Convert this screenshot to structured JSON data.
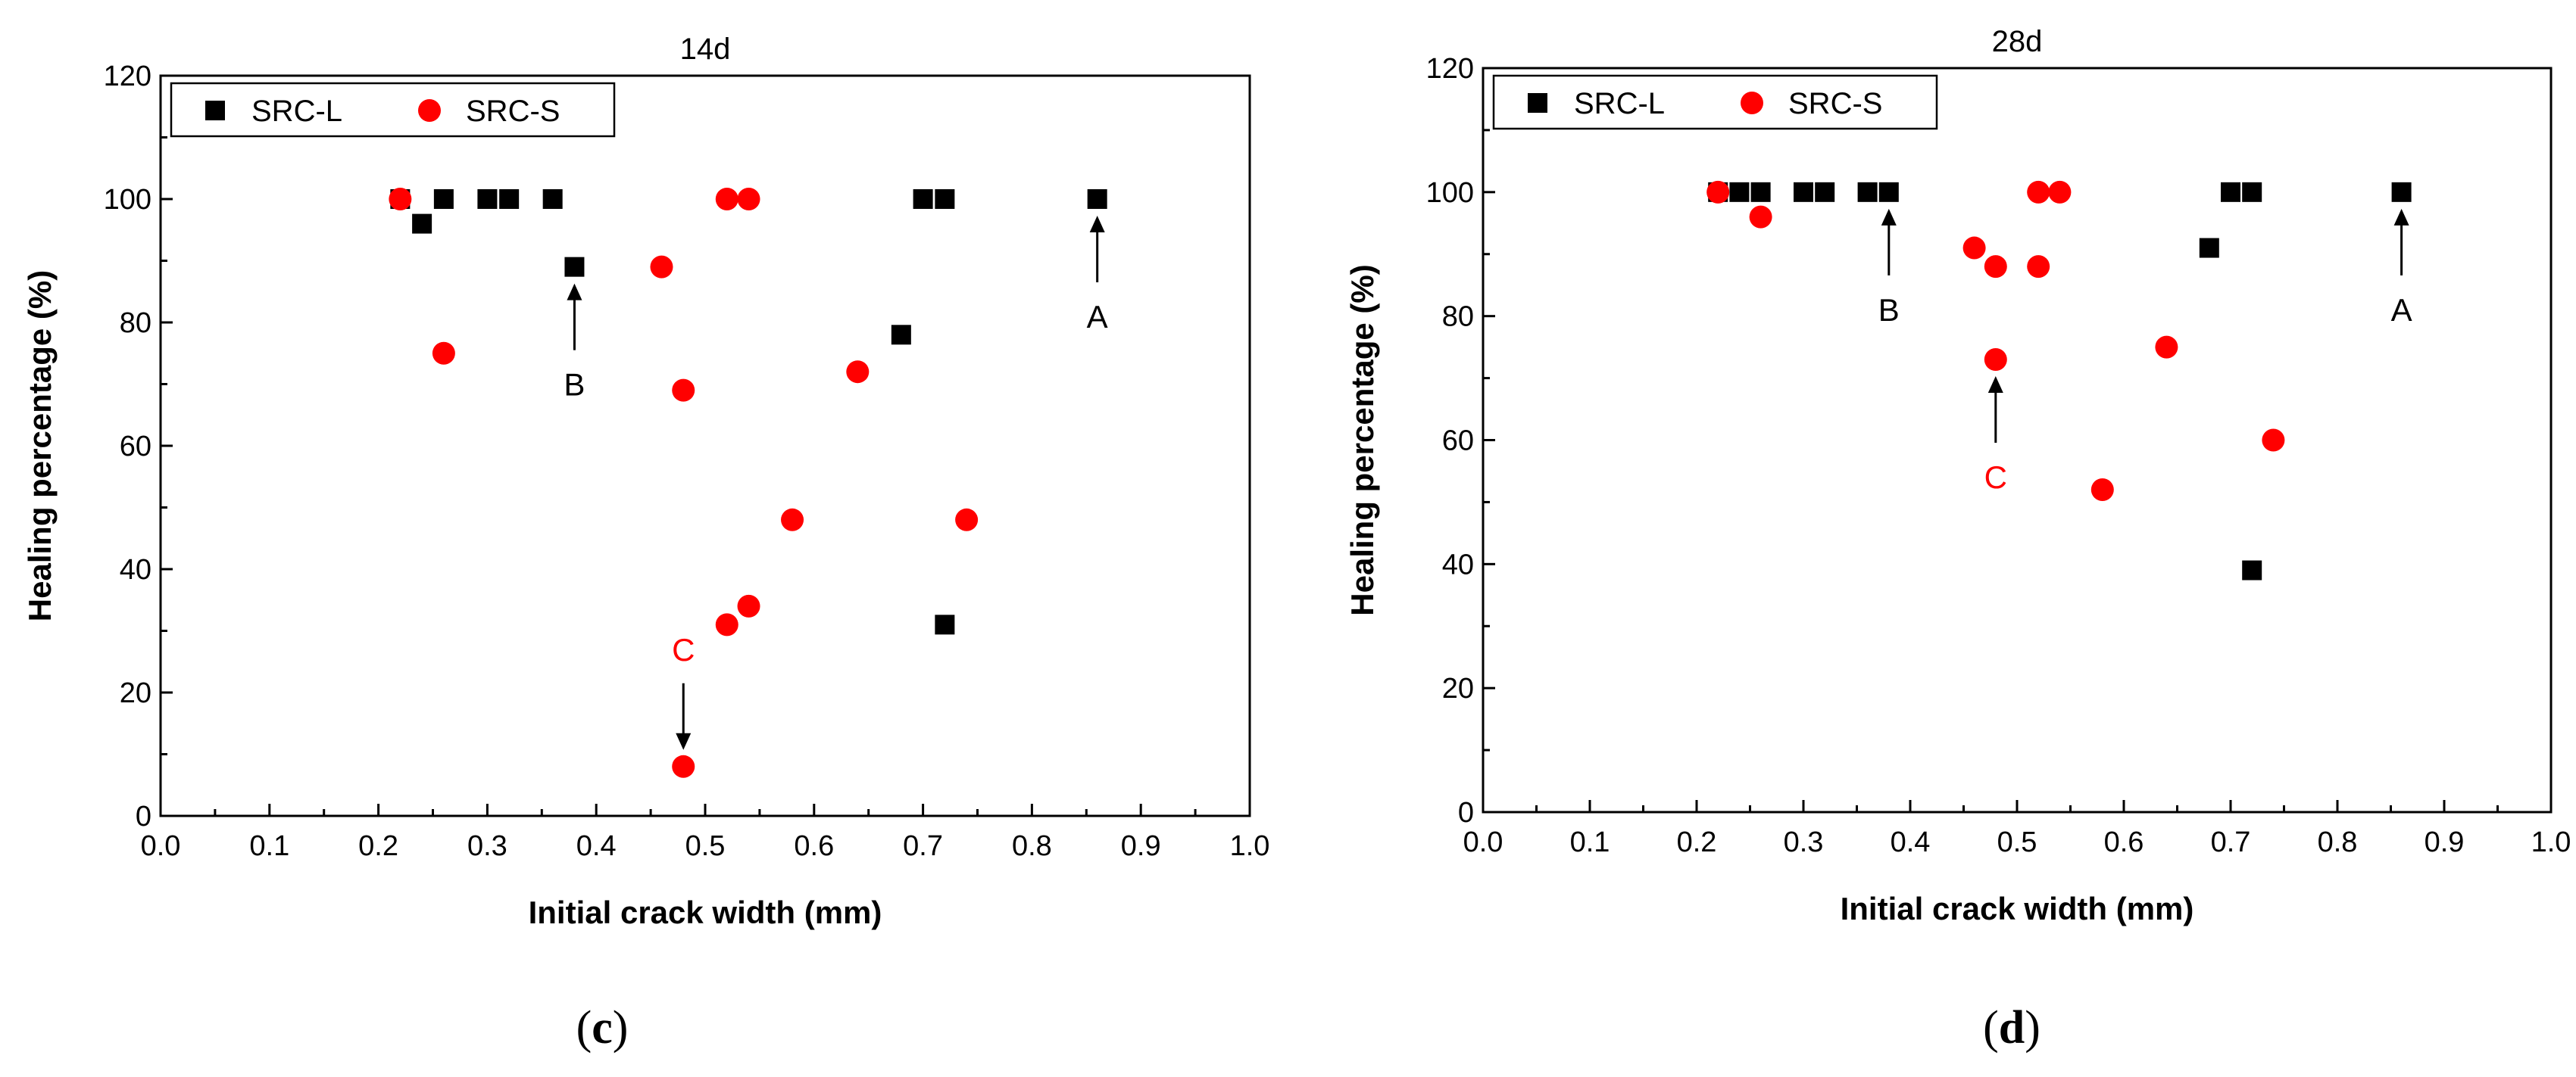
{
  "chart_data": [
    {
      "type": "scatter",
      "panel": "c",
      "title": "14d",
      "xlabel": "Initial crack width (mm)",
      "ylabel": "Healing percentage (%)",
      "xlim": [
        0.0,
        1.0
      ],
      "ylim": [
        0,
        120
      ],
      "xticks": [
        "0.0",
        "0.1",
        "0.2",
        "0.3",
        "0.4",
        "0.5",
        "0.6",
        "0.7",
        "0.8",
        "0.9",
        "1.0"
      ],
      "yticks": [
        "0",
        "20",
        "40",
        "60",
        "80",
        "100",
        "120"
      ],
      "legend_position": "top-left",
      "series": [
        {
          "name": "SRC-L",
          "marker": "square",
          "color": "#000000",
          "points": [
            [
              0.22,
              100
            ],
            [
              0.24,
              96
            ],
            [
              0.26,
              100
            ],
            [
              0.3,
              100
            ],
            [
              0.32,
              100
            ],
            [
              0.36,
              100
            ],
            [
              0.38,
              89
            ],
            [
              0.68,
              78
            ],
            [
              0.7,
              100
            ],
            [
              0.72,
              100
            ],
            [
              0.72,
              31
            ],
            [
              0.86,
              100
            ]
          ]
        },
        {
          "name": "SRC-S",
          "marker": "circle",
          "color": "#ff0000",
          "points": [
            [
              0.22,
              100
            ],
            [
              0.26,
              75
            ],
            [
              0.46,
              89
            ],
            [
              0.48,
              69
            ],
            [
              0.48,
              8
            ],
            [
              0.52,
              100
            ],
            [
              0.52,
              31
            ],
            [
              0.54,
              100
            ],
            [
              0.54,
              34
            ],
            [
              0.58,
              48
            ],
            [
              0.64,
              72
            ],
            [
              0.74,
              48
            ]
          ]
        }
      ],
      "annotations": [
        {
          "label": "A",
          "color": "#000000",
          "point": [
            0.86,
            100
          ],
          "label_side": "below"
        },
        {
          "label": "B",
          "color": "#000000",
          "point": [
            0.38,
            89
          ],
          "label_side": "below"
        },
        {
          "label": "C",
          "color": "#ff0000",
          "point": [
            0.48,
            8
          ],
          "label_side": "above"
        }
      ],
      "caption_prefix": "(",
      "caption_letter": "c",
      "caption_suffix": ")"
    },
    {
      "type": "scatter",
      "panel": "d",
      "title": "28d",
      "xlabel": "Initial crack width (mm)",
      "ylabel": "Healing percentage (%)",
      "xlim": [
        0.0,
        1.0
      ],
      "ylim": [
        0,
        120
      ],
      "xticks": [
        "0.0",
        "0.1",
        "0.2",
        "0.3",
        "0.4",
        "0.5",
        "0.6",
        "0.7",
        "0.8",
        "0.9",
        "1.0"
      ],
      "yticks": [
        "0",
        "20",
        "40",
        "60",
        "80",
        "100",
        "120"
      ],
      "legend_position": "top-left",
      "series": [
        {
          "name": "SRC-L",
          "marker": "square",
          "color": "#000000",
          "points": [
            [
              0.22,
              100
            ],
            [
              0.24,
              100
            ],
            [
              0.26,
              100
            ],
            [
              0.3,
              100
            ],
            [
              0.32,
              100
            ],
            [
              0.36,
              100
            ],
            [
              0.38,
              100
            ],
            [
              0.68,
              91
            ],
            [
              0.7,
              100
            ],
            [
              0.72,
              100
            ],
            [
              0.72,
              39
            ],
            [
              0.86,
              100
            ]
          ]
        },
        {
          "name": "SRC-S",
          "marker": "circle",
          "color": "#ff0000",
          "points": [
            [
              0.22,
              100
            ],
            [
              0.26,
              96
            ],
            [
              0.46,
              91
            ],
            [
              0.48,
              88
            ],
            [
              0.48,
              73
            ],
            [
              0.52,
              100
            ],
            [
              0.52,
              88
            ],
            [
              0.54,
              100
            ],
            [
              0.58,
              52
            ],
            [
              0.64,
              75
            ],
            [
              0.74,
              60
            ]
          ]
        }
      ],
      "annotations": [
        {
          "label": "A",
          "color": "#000000",
          "point": [
            0.86,
            100
          ],
          "label_side": "below"
        },
        {
          "label": "B",
          "color": "#000000",
          "point": [
            0.38,
            100
          ],
          "label_side": "below"
        },
        {
          "label": "C",
          "color": "#ff0000",
          "point": [
            0.48,
            73
          ],
          "label_side": "below"
        }
      ],
      "caption_prefix": "(",
      "caption_letter": "d",
      "caption_suffix": ")"
    }
  ]
}
